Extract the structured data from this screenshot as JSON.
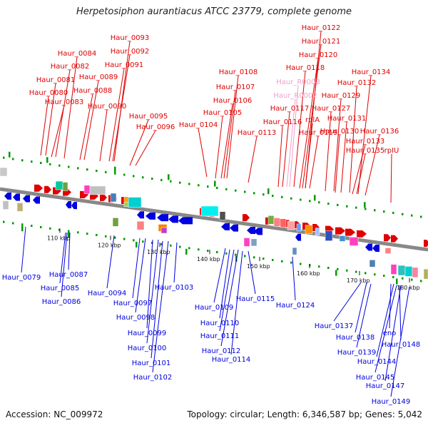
{
  "title": "Herpetosiphon aurantiacus ATCC 23779, complete genome",
  "footer": {
    "accession": "Accession: NC_009972",
    "topology": "Topology: circular; Length: 6,346,587 bp; Genes: 5,042"
  },
  "colors": {
    "forward": "#e00000",
    "reverse": "#0000e0",
    "rna": "#f0a0c8",
    "backbone": "#888888",
    "tick_dots": "#009900"
  },
  "ticks": [
    "110 kbp",
    "120 kbp",
    "130 kbp",
    "140 kbp",
    "150 kbp",
    "160 kbp",
    "170 kbp",
    "180 kbp"
  ],
  "top_labels": [
    "Haur_0093",
    "Haur_0092",
    "Haur_0084",
    "Haur_0091",
    "Haur_0082",
    "Haur_0089",
    "Haur_0081",
    "Haur_0088",
    "Haur_0080",
    "Haur_0083",
    "Haur_0090",
    "Haur_0095",
    "Haur_0096",
    "Haur_0108",
    "Haur_0107",
    "Haur_0106",
    "Haur_0105",
    "Haur_0104",
    "Haur_0113",
    "Haur_0122",
    "Haur_0121",
    "Haur_0120",
    "Haur_0118",
    "Haur_R0003",
    "Haur_R0002",
    "Haur_0117",
    "Haur_0116",
    "rplA",
    "Haur_0119",
    "Haur_0134",
    "Haur_0132",
    "Haur_0129",
    "Haur_0127",
    "Haur_0131",
    "Haur_0130",
    "Haur_0133",
    "Haur_0136",
    "Haur_0135",
    "rpIU"
  ],
  "bottom_labels": [
    "Haur_0079",
    "Haur_0087",
    "Haur_0085",
    "Haur_0086",
    "Haur_0094",
    "Haur_0097",
    "Haur_0098",
    "Haur_0099",
    "Haur_0100",
    "Haur_0101",
    "Haur_0102",
    "Haur_0103",
    "Haur_0109",
    "Haur_0110",
    "Haur_0111",
    "Haur_0112",
    "Haur_0114",
    "Haur_0115",
    "Haur_0124",
    "Haur_0137",
    "Haur_0138",
    "Haur_0139",
    "eno",
    "Haur_0148",
    "Haur_0144",
    "Haur_0145",
    "Haur_0147",
    "Haur_0149"
  ]
}
